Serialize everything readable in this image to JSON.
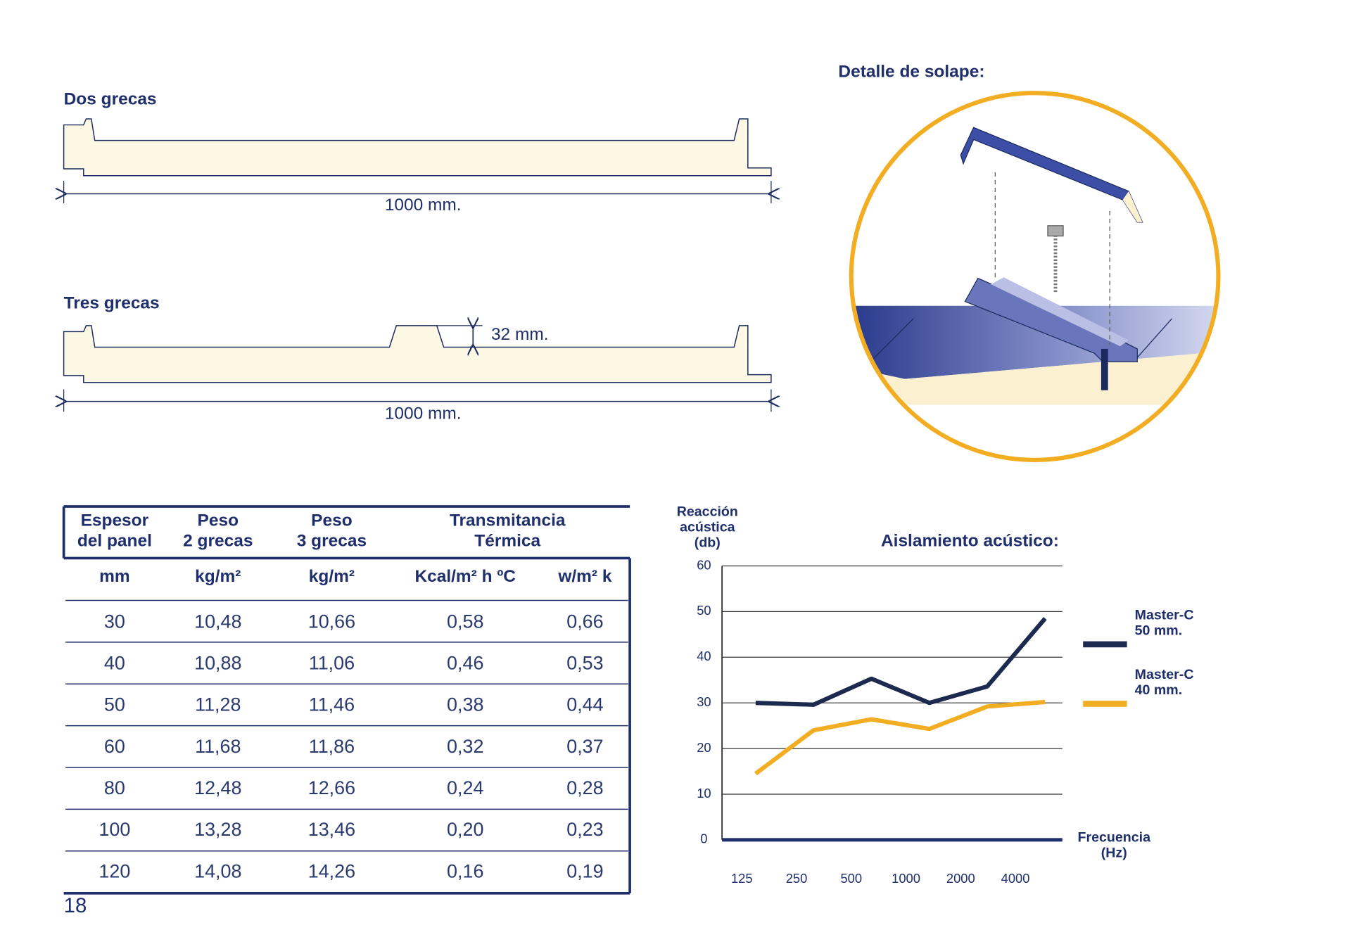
{
  "page_number": "18",
  "profiles": [
    {
      "title": "Dos grecas",
      "width_label": "1000 mm."
    },
    {
      "title": "Tres grecas",
      "width_label": "1000 mm.",
      "rib_label": "32 mm."
    }
  ],
  "detail": {
    "title": "Detalle de solape:"
  },
  "table": {
    "header": [
      [
        "Espesor",
        "del panel"
      ],
      [
        "Peso",
        "2 grecas"
      ],
      [
        "Peso",
        "3 grecas"
      ],
      [
        "Transmitancia",
        "Térmica"
      ]
    ],
    "units": [
      "mm",
      "kg/m²",
      "kg/m²",
      "Kcal/m² h ºC",
      "w/m² k"
    ],
    "rows": [
      [
        "30",
        "10,48",
        "10,66",
        "0,58",
        "0,66"
      ],
      [
        "40",
        "10,88",
        "11,06",
        "0,46",
        "0,53"
      ],
      [
        "50",
        "11,28",
        "11,46",
        "0,38",
        "0,44"
      ],
      [
        "60",
        "11,68",
        "11,86",
        "0,32",
        "0,37"
      ],
      [
        "80",
        "12,48",
        "12,66",
        "0,24",
        "0,28"
      ],
      [
        "100",
        "13,28",
        "13,46",
        "0,20",
        "0,23"
      ],
      [
        "120",
        "14,08",
        "14,26",
        "0,16",
        "0,19"
      ]
    ]
  },
  "chart_data": {
    "type": "line",
    "title": "Aislamiento acústico:",
    "y_label": "Reacción acústica (db)",
    "x_label": "Frecuencia (Hz)",
    "categories": [
      "125",
      "250",
      "500",
      "1000",
      "2000",
      "4000"
    ],
    "series": [
      {
        "name": "Master-C 50 mm.",
        "color": "#1b2a4e",
        "values": [
          30,
          29.6,
          35.3,
          30,
          33.6,
          48.5
        ]
      },
      {
        "name": "Master-C 40 mm.",
        "color": "#f2ad22",
        "values": [
          14.5,
          24,
          26.4,
          24.3,
          29.2,
          30.2
        ]
      }
    ],
    "ylim": [
      0,
      60
    ],
    "yticks": [
      0,
      10,
      20,
      30,
      40,
      50,
      60
    ],
    "grid": true
  }
}
